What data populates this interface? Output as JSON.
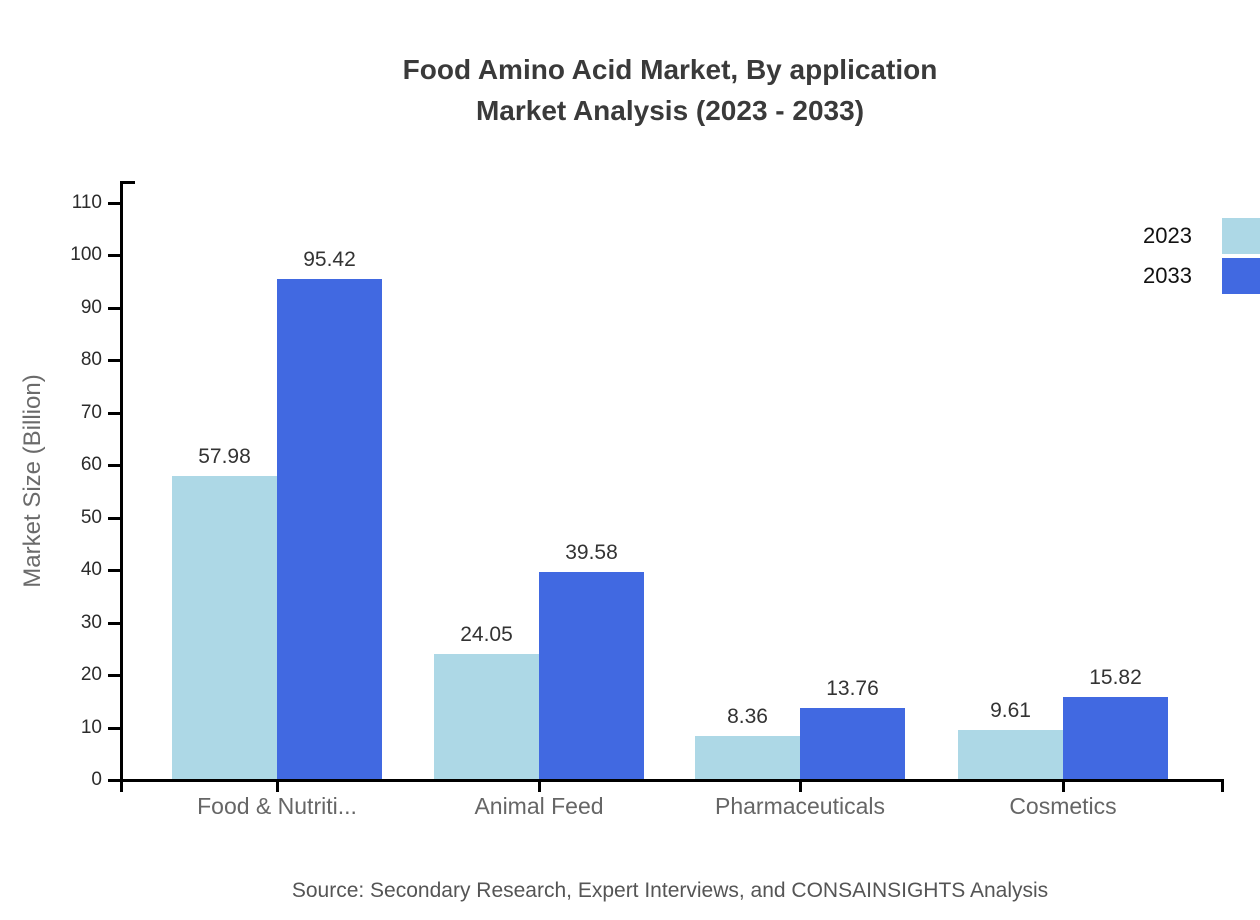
{
  "title": {
    "line1": "Food Amino Acid Market, By application",
    "line2": "Market Analysis (2023 - 2033)"
  },
  "source": "Source: Secondary Research, Expert Interviews, and CONSAINSIGHTS Analysis",
  "chart_data": {
    "type": "bar",
    "title": "Food Amino Acid Market, By application Market Analysis (2023 - 2033)",
    "categories": [
      "Food & Nutriti...",
      "Animal Feed",
      "Pharmaceuticals",
      "Cosmetics"
    ],
    "series": [
      {
        "name": "2023",
        "color": "#add8e6",
        "values": [
          57.98,
          24.05,
          8.36,
          9.61
        ]
      },
      {
        "name": "2033",
        "color": "#4169e1",
        "values": [
          95.42,
          39.58,
          13.76,
          15.82
        ]
      }
    ],
    "xlabel": "",
    "ylabel": "Market Size (Billion)",
    "ylim": [
      0,
      110
    ],
    "yticks": [
      0,
      10,
      20,
      30,
      40,
      50,
      60,
      70,
      80,
      90,
      100,
      110
    ],
    "grid": false,
    "legend_position": "top-right",
    "value_label_format": "2-decimals"
  },
  "colors": {
    "series_2023": "#add8e6",
    "series_2033": "#4169e1",
    "axis": "#000000",
    "title_text": "#3a3a3a",
    "tick_text": "#2b2b2b",
    "category_text": "#666666",
    "muted_text": "#555555",
    "background": "#ffffff"
  }
}
